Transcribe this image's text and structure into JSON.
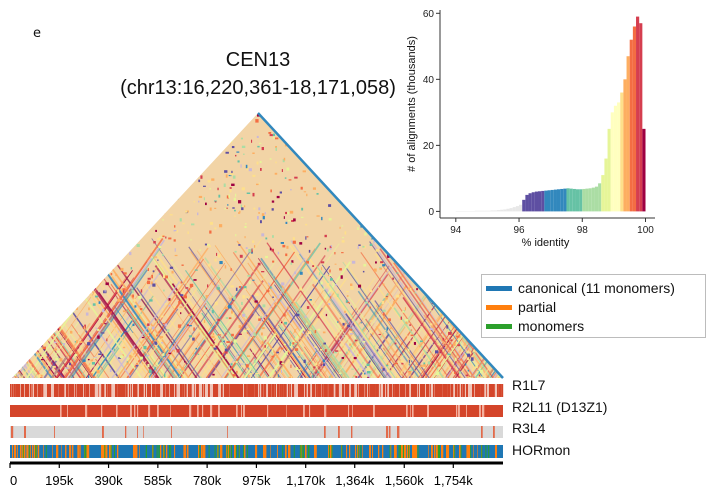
{
  "corner_mark": "e",
  "title": {
    "line1": "CEN13",
    "line2": "(chr13:16,220,361-18,171,058)"
  },
  "colors": {
    "canonical": "#1f77b4",
    "partial": "#ff7f0e",
    "monomers": "#2ca02c",
    "r1l7": "#d4452a",
    "r2l11": "#d4452a",
    "r3l4_bg": "#d9d9d9",
    "r3l4_mark": "#e26a4a"
  },
  "legend": [
    {
      "label": "canonical (11 monomers)",
      "color": "#1f77b4"
    },
    {
      "label": "partial",
      "color": "#ff7f0e"
    },
    {
      "label": "monomers",
      "color": "#2ca02c"
    }
  ],
  "tracks": [
    {
      "label": "R1L7"
    },
    {
      "label": "R2L11 (D13Z1)"
    },
    {
      "label": "R3L4"
    },
    {
      "label": "HORmon"
    }
  ],
  "chart_data": [
    {
      "type": "heatmap",
      "title": "CEN13 (chr13:16,220,361-18,171,058)",
      "description": "Triangular self-identity heatmap of the centromeric array",
      "xlabel": "",
      "x_range": [
        0,
        1950697
      ],
      "tick_labels": [
        "0",
        "195k",
        "390k",
        "585k",
        "780k",
        "975k",
        "1,170k",
        "1,364k",
        "1,560k",
        "1,754k"
      ],
      "tick_values": [
        0,
        195000,
        390000,
        585000,
        780000,
        975000,
        1170000,
        1364000,
        1560000,
        1754000
      ]
    },
    {
      "type": "bar",
      "title": "",
      "xlabel": "% identity",
      "ylabel": "# of alignments (thousands)",
      "xlim": [
        93.5,
        100.3
      ],
      "ylim": [
        -2,
        61
      ],
      "x_ticks": [
        94,
        96,
        98,
        100
      ],
      "y_ticks": [
        0,
        20,
        40,
        60
      ],
      "bin_width": 0.1,
      "x": [
        94.0,
        94.1,
        94.2,
        94.3,
        94.4,
        94.5,
        94.6,
        94.7,
        94.8,
        94.9,
        95.0,
        95.1,
        95.2,
        95.3,
        95.4,
        95.5,
        95.6,
        95.7,
        95.8,
        95.9,
        96.0,
        96.1,
        96.2,
        96.3,
        96.4,
        96.5,
        96.6,
        96.7,
        96.8,
        96.9,
        97.0,
        97.1,
        97.2,
        97.3,
        97.4,
        97.5,
        97.6,
        97.7,
        97.8,
        97.9,
        98.0,
        98.1,
        98.2,
        98.3,
        98.4,
        98.5,
        98.6,
        98.7,
        98.8,
        98.9,
        99.0,
        99.1,
        99.2,
        99.3,
        99.4,
        99.5,
        99.6,
        99.7,
        99.8,
        99.9
      ],
      "values": [
        0.1,
        0.1,
        0.1,
        0.1,
        0.1,
        0.1,
        0.2,
        0.2,
        0.2,
        0.2,
        0.2,
        0.3,
        0.3,
        0.4,
        0.5,
        0.6,
        0.8,
        1.0,
        1.3,
        1.6,
        2.0,
        3.5,
        5.0,
        5.5,
        5.8,
        6.0,
        6.1,
        6.2,
        6.3,
        6.4,
        6.5,
        6.6,
        6.7,
        6.8,
        6.9,
        7.0,
        6.9,
        6.8,
        6.7,
        6.7,
        6.8,
        6.9,
        7.0,
        7.2,
        7.5,
        8.5,
        11.0,
        16.0,
        25.0,
        30.0,
        32.0,
        33.0,
        36.0,
        40.0,
        47.0,
        52.0,
        56.0,
        59.0,
        57.0,
        25.0
      ],
      "colors": [
        "#e8e8e8",
        "#e8e8e8",
        "#e8e8e8",
        "#e8e8e8",
        "#e8e8e8",
        "#e8e8e8",
        "#e8e8e8",
        "#e8e8e8",
        "#e8e8e8",
        "#e8e8e8",
        "#e8e8e8",
        "#e8e8e8",
        "#e8e8e8",
        "#e8e8e8",
        "#e8e8e8",
        "#e8e8e8",
        "#e8e8e8",
        "#e8e8e8",
        "#e8e8e8",
        "#e8e8e8",
        "#e8e8e8",
        "#5e4fa2",
        "#5e4fa2",
        "#5e4fa2",
        "#5e4fa2",
        "#5e4fa2",
        "#5e4fa2",
        "#5e4fa2",
        "#3288bd",
        "#3288bd",
        "#3288bd",
        "#3288bd",
        "#3288bd",
        "#3288bd",
        "#3288bd",
        "#66c2a5",
        "#66c2a5",
        "#66c2a5",
        "#66c2a5",
        "#66c2a5",
        "#abdda4",
        "#abdda4",
        "#abdda4",
        "#abdda4",
        "#abdda4",
        "#abdda4",
        "#e6f598",
        "#e6f598",
        "#e6f598",
        "#ffffbf",
        "#ffffbf",
        "#ffffbf",
        "#fee08b",
        "#fdae61",
        "#fdae61",
        "#f46d43",
        "#f46d43",
        "#d53e4f",
        "#d53e4f",
        "#9e0142"
      ]
    }
  ]
}
